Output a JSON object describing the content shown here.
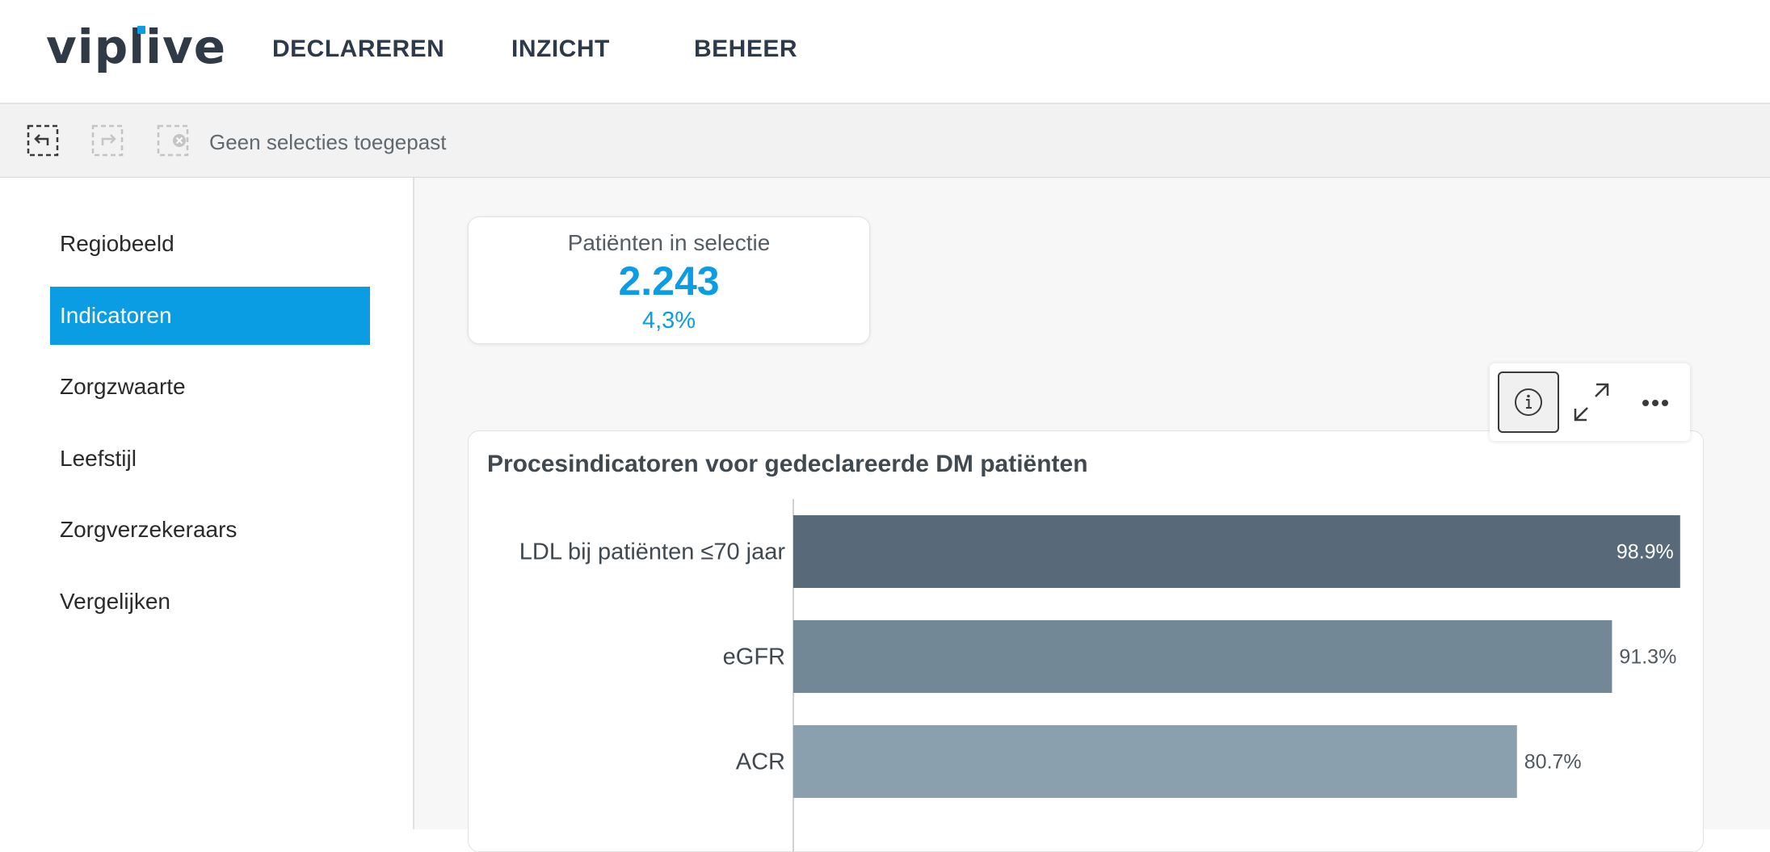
{
  "app": {
    "logo": "viplive",
    "accent": "#0a9de3"
  },
  "nav": {
    "items": [
      "DECLAREREN",
      "INZICHT",
      "BEHEER"
    ]
  },
  "selection_bar": {
    "status_text": "Geen selecties toegepast",
    "icons": [
      "step-back-icon",
      "step-forward-icon",
      "clear-selections-icon"
    ]
  },
  "sidebar": {
    "items": [
      {
        "label": "Regiobeeld",
        "active": false
      },
      {
        "label": "Indicatoren",
        "active": true
      },
      {
        "label": "Zorgzwaarte",
        "active": false
      },
      {
        "label": "Leefstijl",
        "active": false
      },
      {
        "label": "Zorgverzekeraars",
        "active": false
      },
      {
        "label": "Vergelijken",
        "active": false
      }
    ]
  },
  "kpi": {
    "title": "Patiënten in selectie",
    "value": "2.243",
    "percent": "4,3%"
  },
  "toolbox": {
    "icons": [
      "info-icon",
      "expand-icon",
      "more-icon"
    ]
  },
  "chart_data": {
    "type": "bar",
    "orientation": "horizontal",
    "title": "Procesindicatoren voor gedeclareerde DM patiënten",
    "categories": [
      "LDL bij patiënten ≤70 jaar",
      "eGFR",
      "ACR"
    ],
    "values": [
      98.9,
      91.3,
      80.7
    ],
    "value_labels": [
      "98.9%",
      "91.3%",
      "80.7%"
    ],
    "colors": [
      "#586a79",
      "#728896",
      "#8aa0ae"
    ],
    "xlim": [
      0,
      100
    ],
    "grid": false
  }
}
